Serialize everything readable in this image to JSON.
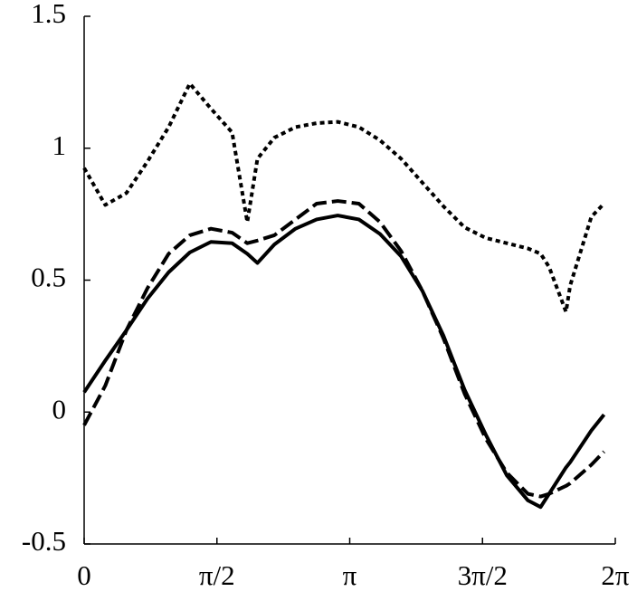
{
  "chart_data": {
    "type": "line",
    "x": [
      0,
      0.25,
      0.5,
      0.75,
      1,
      1.25,
      1.5,
      1.75,
      1.93,
      2.05,
      2.25,
      2.5,
      2.75,
      3,
      3.25,
      3.5,
      3.75,
      4,
      4.25,
      4.5,
      4.75,
      5,
      5.25,
      5.4,
      5.5,
      5.7,
      5.75,
      6,
      6.15
    ],
    "series": [
      {
        "color": "#000000",
        "linestyle": "solid",
        "values": [
          0.075,
          0.195,
          0.31,
          0.43,
          0.53,
          0.605,
          0.645,
          0.64,
          0.6,
          0.565,
          0.635,
          0.695,
          0.73,
          0.745,
          0.73,
          0.675,
          0.59,
          0.46,
          0.29,
          0.085,
          -0.085,
          -0.24,
          -0.335,
          -0.36,
          -0.31,
          -0.21,
          -0.19,
          -0.07,
          -0.01
        ]
      },
      {
        "color": "#000000",
        "linestyle": "dashed",
        "values": [
          -0.05,
          0.1,
          0.31,
          0.47,
          0.6,
          0.67,
          0.695,
          0.68,
          0.64,
          0.65,
          0.67,
          0.73,
          0.79,
          0.8,
          0.79,
          0.72,
          0.61,
          0.46,
          0.28,
          0.07,
          -0.1,
          -0.23,
          -0.31,
          -0.32,
          -0.31,
          -0.28,
          -0.27,
          -0.2,
          -0.15
        ]
      },
      {
        "color": "#000000",
        "linestyle": "dotted",
        "values": [
          0.925,
          0.785,
          0.83,
          0.95,
          1.08,
          1.245,
          1.15,
          1.06,
          0.72,
          0.96,
          1.04,
          1.08,
          1.095,
          1.1,
          1.08,
          1.03,
          0.96,
          0.87,
          0.78,
          0.7,
          0.66,
          0.64,
          0.62,
          0.6,
          0.55,
          0.38,
          0.48,
          0.74,
          0.79
        ]
      }
    ],
    "xlim": [
      0,
      6.2832
    ],
    "xticks": [
      0,
      {
        "value": 1.5708,
        "label": "π/2"
      },
      {
        "value": 3.1416,
        "label": "π"
      },
      {
        "value": 4.7124,
        "label": "3π/2"
      },
      {
        "value": 6.2832,
        "label": "2π"
      }
    ],
    "ylim": [
      -0.5,
      1.5
    ],
    "yticks": [
      -0.5,
      0,
      0.5,
      1,
      1.5
    ],
    "grid": false
  }
}
